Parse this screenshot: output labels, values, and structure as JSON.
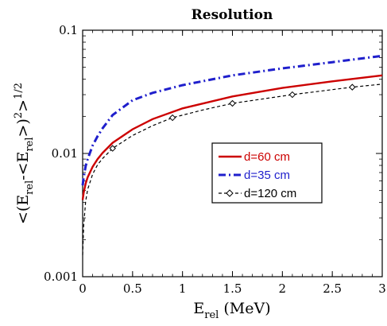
{
  "chart_data": {
    "type": "line",
    "title": "Resolution",
    "xlabel": {
      "base": "E",
      "sub": "rel",
      "units": " (MeV)"
    },
    "ylabel": {
      "parts": [
        {
          "t": "<(E"
        },
        {
          "t": "rel",
          "sub": true
        },
        {
          "t": "-<E"
        },
        {
          "t": "rel",
          "sub": true
        },
        {
          "t": ">)"
        },
        {
          "t": "2",
          "sup": true
        },
        {
          "t": ">"
        },
        {
          "t": "1/2",
          "sup": true
        }
      ]
    },
    "xlim": [
      0,
      3
    ],
    "ylim": [
      0.001,
      0.1
    ],
    "yscale": "log",
    "xticks": [
      0,
      0.5,
      1,
      1.5,
      2,
      2.5,
      3
    ],
    "xtick_labels": [
      "0",
      "0.5",
      "1",
      "1.5",
      "2",
      "2.5",
      "3"
    ],
    "yticks": [
      0.001,
      0.01,
      0.1
    ],
    "ytick_labels": [
      "0.001",
      "0.01",
      "0.1"
    ],
    "grid": false,
    "legend_position": "center-right",
    "series": [
      {
        "name": "d=60 cm",
        "color": "#cc0000",
        "style": "solid",
        "x": [
          0.0,
          0.01,
          0.03,
          0.05,
          0.1,
          0.15,
          0.2,
          0.3,
          0.5,
          0.7,
          1.0,
          1.5,
          2.0,
          2.5,
          3.0
        ],
        "y": [
          0.0042,
          0.0048,
          0.0057,
          0.0064,
          0.0078,
          0.009,
          0.0101,
          0.0122,
          0.0157,
          0.019,
          0.0232,
          0.029,
          0.034,
          0.0385,
          0.043
        ]
      },
      {
        "name": "d=35 cm",
        "color": "#1f1fcc",
        "style": "dashdot",
        "x": [
          0.0,
          0.01,
          0.03,
          0.05,
          0.1,
          0.15,
          0.2,
          0.3,
          0.5,
          0.7,
          1.0,
          1.5,
          2.0,
          2.5,
          3.0
        ],
        "y": [
          0.0055,
          0.0064,
          0.0079,
          0.009,
          0.0116,
          0.0138,
          0.016,
          0.0205,
          0.027,
          0.031,
          0.0358,
          0.043,
          0.049,
          0.055,
          0.062
        ]
      },
      {
        "name": "d=120 cm",
        "color": "#000000",
        "style": "dashed",
        "marker": "diamond",
        "x": [
          0.0,
          0.01,
          0.03,
          0.05,
          0.1,
          0.15,
          0.2,
          0.3,
          0.5,
          0.7,
          0.9,
          1.2,
          1.5,
          2.1,
          2.7,
          3.0
        ],
        "y": [
          0.0015,
          0.0026,
          0.0041,
          0.0051,
          0.0068,
          0.0081,
          0.0091,
          0.011,
          0.014,
          0.0168,
          0.0195,
          0.0225,
          0.0255,
          0.03,
          0.0345,
          0.0365
        ],
        "marker_x": [
          0.3,
          0.9,
          1.5,
          2.1,
          2.7
        ]
      }
    ]
  }
}
